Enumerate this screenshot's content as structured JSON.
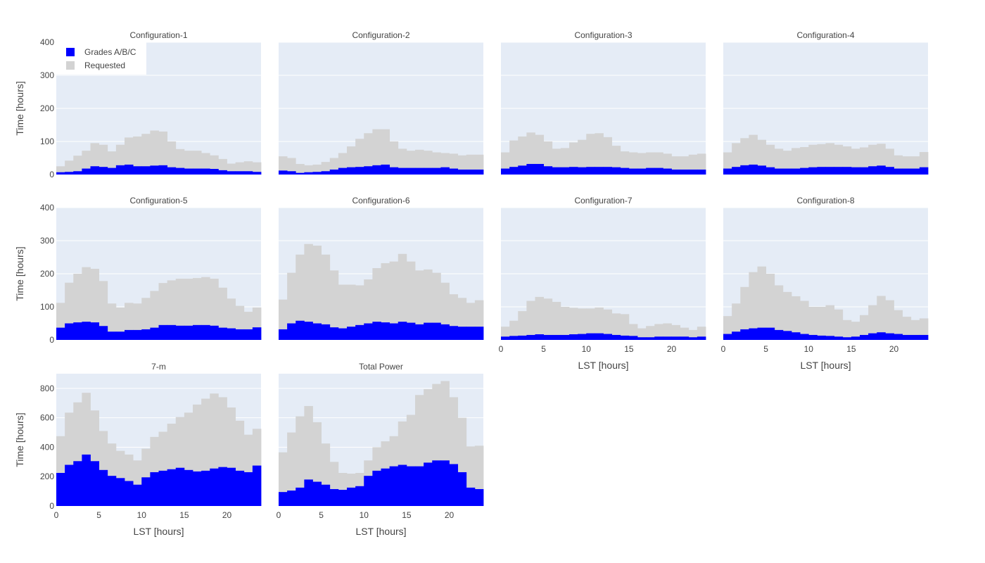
{
  "colors": {
    "plot_bg": "#e5ecf6",
    "grid": "#ffffff",
    "grades": "#0000ff",
    "requested": "#d3d3d3",
    "text": "#444444"
  },
  "legend": {
    "placement": "top-left of first panel",
    "items": [
      {
        "label": "Grades A/B/C",
        "color": "#0000ff"
      },
      {
        "label": "Requested",
        "color": "#d3d3d3"
      }
    ]
  },
  "chart_data": [
    {
      "type": "bar",
      "stacked": "overlay",
      "title": "Configuration-1",
      "xlabel": "",
      "ylabel": "Time [hours]",
      "xlim": [
        0,
        24
      ],
      "ylim": [
        0,
        400
      ],
      "yticks": [
        0,
        100,
        200,
        300,
        400
      ],
      "xticks": [],
      "x": [
        0,
        1,
        2,
        3,
        4,
        5,
        6,
        7,
        8,
        9,
        10,
        11,
        12,
        13,
        14,
        15,
        16,
        17,
        18,
        19,
        20,
        21,
        22,
        23
      ],
      "series": [
        {
          "name": "Requested",
          "values": [
            25,
            42,
            57,
            72,
            95,
            90,
            70,
            90,
            112,
            115,
            123,
            133,
            130,
            100,
            77,
            72,
            72,
            65,
            58,
            47,
            33,
            37,
            40,
            37
          ]
        },
        {
          "name": "Grades A/B/C",
          "values": [
            7,
            8,
            10,
            18,
            25,
            23,
            20,
            28,
            30,
            25,
            25,
            27,
            28,
            22,
            20,
            18,
            18,
            18,
            17,
            13,
            10,
            10,
            10,
            8
          ]
        }
      ]
    },
    {
      "type": "bar",
      "stacked": "overlay",
      "title": "Configuration-2",
      "xlabel": "",
      "ylabel": "",
      "xlim": [
        0,
        24
      ],
      "ylim": [
        0,
        400
      ],
      "yticks": [
        0,
        100,
        200,
        300,
        400
      ],
      "xticks": [],
      "x": [
        0,
        1,
        2,
        3,
        4,
        5,
        6,
        7,
        8,
        9,
        10,
        11,
        12,
        13,
        14,
        15,
        16,
        17,
        18,
        19,
        20,
        21,
        22,
        23
      ],
      "series": [
        {
          "name": "Requested",
          "values": [
            55,
            50,
            32,
            28,
            30,
            38,
            50,
            65,
            85,
            108,
            125,
            137,
            137,
            100,
            78,
            72,
            75,
            72,
            67,
            65,
            63,
            58,
            60,
            60
          ]
        },
        {
          "name": "Grades A/B/C",
          "values": [
            12,
            10,
            5,
            7,
            8,
            10,
            15,
            20,
            22,
            23,
            25,
            28,
            30,
            22,
            20,
            20,
            20,
            20,
            20,
            22,
            18,
            15,
            15,
            15
          ]
        }
      ]
    },
    {
      "type": "bar",
      "stacked": "overlay",
      "title": "Configuration-3",
      "xlabel": "",
      "ylabel": "",
      "xlim": [
        0,
        24
      ],
      "ylim": [
        0,
        400
      ],
      "yticks": [
        0,
        100,
        200,
        300,
        400
      ],
      "xticks": [],
      "x": [
        0,
        1,
        2,
        3,
        4,
        5,
        6,
        7,
        8,
        9,
        10,
        11,
        12,
        13,
        14,
        15,
        16,
        17,
        18,
        19,
        20,
        21,
        22,
        23
      ],
      "series": [
        {
          "name": "Requested",
          "values": [
            67,
            103,
            115,
            127,
            120,
            100,
            78,
            80,
            97,
            105,
            123,
            125,
            113,
            87,
            70,
            67,
            65,
            67,
            67,
            63,
            55,
            55,
            60,
            63
          ]
        },
        {
          "name": "Grades A/B/C",
          "values": [
            18,
            23,
            27,
            32,
            32,
            25,
            22,
            22,
            23,
            22,
            23,
            23,
            23,
            22,
            20,
            18,
            18,
            20,
            20,
            18,
            15,
            15,
            15,
            15
          ]
        }
      ]
    },
    {
      "type": "bar",
      "stacked": "overlay",
      "title": "Configuration-4",
      "xlabel": "",
      "ylabel": "",
      "xlim": [
        0,
        24
      ],
      "ylim": [
        0,
        400
      ],
      "yticks": [
        0,
        100,
        200,
        300,
        400
      ],
      "xticks": [],
      "x": [
        0,
        1,
        2,
        3,
        4,
        5,
        6,
        7,
        8,
        9,
        10,
        11,
        12,
        13,
        14,
        15,
        16,
        17,
        18,
        19,
        20,
        21,
        22,
        23
      ],
      "series": [
        {
          "name": "Requested",
          "values": [
            67,
            95,
            110,
            120,
            105,
            90,
            78,
            72,
            80,
            83,
            90,
            92,
            95,
            90,
            85,
            78,
            82,
            90,
            93,
            78,
            58,
            55,
            55,
            68
          ]
        },
        {
          "name": "Grades A/B/C",
          "values": [
            18,
            23,
            28,
            30,
            27,
            22,
            18,
            18,
            18,
            20,
            22,
            23,
            23,
            23,
            23,
            22,
            22,
            25,
            27,
            23,
            18,
            18,
            18,
            22
          ]
        }
      ]
    },
    {
      "type": "bar",
      "stacked": "overlay",
      "title": "Configuration-5",
      "xlabel": "",
      "ylabel": "Time [hours]",
      "xlim": [
        0,
        24
      ],
      "ylim": [
        0,
        400
      ],
      "yticks": [
        0,
        100,
        200,
        300,
        400
      ],
      "xticks": [],
      "x": [
        0,
        1,
        2,
        3,
        4,
        5,
        6,
        7,
        8,
        9,
        10,
        11,
        12,
        13,
        14,
        15,
        16,
        17,
        18,
        19,
        20,
        21,
        22,
        23
      ],
      "series": [
        {
          "name": "Requested",
          "values": [
            112,
            173,
            200,
            220,
            215,
            178,
            110,
            98,
            112,
            110,
            127,
            148,
            172,
            180,
            185,
            185,
            187,
            190,
            185,
            158,
            125,
            103,
            85,
            98
          ]
        },
        {
          "name": "Grades A/B/C",
          "values": [
            37,
            50,
            53,
            55,
            53,
            42,
            25,
            25,
            30,
            30,
            32,
            37,
            45,
            45,
            43,
            43,
            45,
            45,
            43,
            37,
            35,
            32,
            32,
            38
          ]
        }
      ]
    },
    {
      "type": "bar",
      "stacked": "overlay",
      "title": "Configuration-6",
      "xlabel": "",
      "ylabel": "",
      "xlim": [
        0,
        24
      ],
      "ylim": [
        0,
        400
      ],
      "yticks": [
        0,
        100,
        200,
        300,
        400
      ],
      "xticks": [],
      "x": [
        0,
        1,
        2,
        3,
        4,
        5,
        6,
        7,
        8,
        9,
        10,
        11,
        12,
        13,
        14,
        15,
        16,
        17,
        18,
        19,
        20,
        21,
        22,
        23
      ],
      "series": [
        {
          "name": "Requested",
          "values": [
            122,
            203,
            258,
            290,
            285,
            258,
            210,
            167,
            167,
            165,
            183,
            217,
            232,
            237,
            260,
            237,
            210,
            213,
            203,
            173,
            138,
            127,
            112,
            120
          ]
        },
        {
          "name": "Grades A/B/C",
          "values": [
            32,
            50,
            58,
            55,
            50,
            47,
            38,
            35,
            40,
            45,
            50,
            55,
            53,
            50,
            55,
            52,
            47,
            52,
            52,
            47,
            42,
            40,
            40,
            40
          ]
        }
      ]
    },
    {
      "type": "bar",
      "stacked": "overlay",
      "title": "Configuration-7",
      "xlabel": "LST [hours]",
      "ylabel": "",
      "xlim": [
        0,
        24
      ],
      "ylim": [
        0,
        400
      ],
      "yticks": [
        0,
        100,
        200,
        300,
        400
      ],
      "xticks": [
        0,
        5,
        10,
        15,
        20
      ],
      "x": [
        0,
        1,
        2,
        3,
        4,
        5,
        6,
        7,
        8,
        9,
        10,
        11,
        12,
        13,
        14,
        15,
        16,
        17,
        18,
        19,
        20,
        21,
        22,
        23
      ],
      "series": [
        {
          "name": "Requested",
          "values": [
            40,
            58,
            87,
            118,
            130,
            125,
            115,
            100,
            97,
            95,
            95,
            98,
            92,
            80,
            78,
            48,
            35,
            42,
            48,
            50,
            45,
            37,
            30,
            40
          ]
        },
        {
          "name": "Grades A/B/C",
          "values": [
            10,
            12,
            13,
            15,
            17,
            15,
            15,
            15,
            17,
            18,
            20,
            20,
            18,
            15,
            13,
            12,
            8,
            8,
            10,
            10,
            10,
            10,
            8,
            10
          ]
        }
      ]
    },
    {
      "type": "bar",
      "stacked": "overlay",
      "title": "Configuration-8",
      "xlabel": "LST [hours]",
      "ylabel": "",
      "xlim": [
        0,
        24
      ],
      "ylim": [
        0,
        400
      ],
      "yticks": [
        0,
        100,
        200,
        300,
        400
      ],
      "xticks": [
        0,
        5,
        10,
        15,
        20
      ],
      "x": [
        0,
        1,
        2,
        3,
        4,
        5,
        6,
        7,
        8,
        9,
        10,
        11,
        12,
        13,
        14,
        15,
        16,
        17,
        18,
        19,
        20,
        21,
        22,
        23
      ],
      "series": [
        {
          "name": "Requested",
          "values": [
            72,
            110,
            160,
            205,
            222,
            200,
            165,
            145,
            132,
            118,
            100,
            100,
            105,
            92,
            60,
            55,
            75,
            105,
            133,
            120,
            90,
            70,
            60,
            65
          ]
        },
        {
          "name": "Grades A/B/C",
          "values": [
            18,
            25,
            32,
            35,
            37,
            37,
            30,
            27,
            23,
            18,
            15,
            13,
            12,
            10,
            8,
            10,
            15,
            20,
            23,
            20,
            18,
            15,
            15,
            15
          ]
        }
      ]
    },
    {
      "type": "bar",
      "stacked": "overlay",
      "title": "7-m",
      "xlabel": "LST [hours]",
      "ylabel": "Time [hours]",
      "xlim": [
        0,
        24
      ],
      "ylim": [
        0,
        900
      ],
      "yticks": [
        0,
        200,
        400,
        600,
        800
      ],
      "xticks": [
        0,
        5,
        10,
        15,
        20
      ],
      "x": [
        0,
        1,
        2,
        3,
        4,
        5,
        6,
        7,
        8,
        9,
        10,
        11,
        12,
        13,
        14,
        15,
        16,
        17,
        18,
        19,
        20,
        21,
        22,
        23
      ],
      "series": [
        {
          "name": "Requested",
          "values": [
            475,
            635,
            705,
            770,
            650,
            510,
            425,
            375,
            350,
            310,
            390,
            470,
            505,
            560,
            605,
            635,
            690,
            730,
            765,
            740,
            670,
            580,
            485,
            525
          ]
        },
        {
          "name": "Grades A/B/C",
          "values": [
            225,
            280,
            305,
            350,
            305,
            245,
            205,
            190,
            170,
            145,
            195,
            230,
            240,
            250,
            260,
            245,
            235,
            240,
            255,
            265,
            260,
            240,
            230,
            275
          ]
        }
      ]
    },
    {
      "type": "bar",
      "stacked": "overlay",
      "title": "Total Power",
      "xlabel": "LST [hours]",
      "ylabel": "",
      "xlim": [
        0,
        24
      ],
      "ylim": [
        0,
        900
      ],
      "yticks": [
        0,
        200,
        400,
        600,
        800
      ],
      "xticks": [
        0,
        5,
        10,
        15,
        20
      ],
      "x": [
        0,
        1,
        2,
        3,
        4,
        5,
        6,
        7,
        8,
        9,
        10,
        11,
        12,
        13,
        14,
        15,
        16,
        17,
        18,
        19,
        20,
        21,
        22,
        23
      ],
      "series": [
        {
          "name": "Requested",
          "values": [
            365,
            500,
            610,
            680,
            570,
            425,
            300,
            225,
            220,
            225,
            310,
            400,
            440,
            475,
            575,
            620,
            755,
            795,
            830,
            850,
            740,
            600,
            405,
            410
          ]
        },
        {
          "name": "Grades A/B/C",
          "values": [
            95,
            105,
            125,
            180,
            165,
            145,
            115,
            110,
            125,
            135,
            205,
            240,
            255,
            270,
            280,
            270,
            270,
            295,
            310,
            310,
            285,
            230,
            125,
            115
          ]
        }
      ]
    }
  ]
}
